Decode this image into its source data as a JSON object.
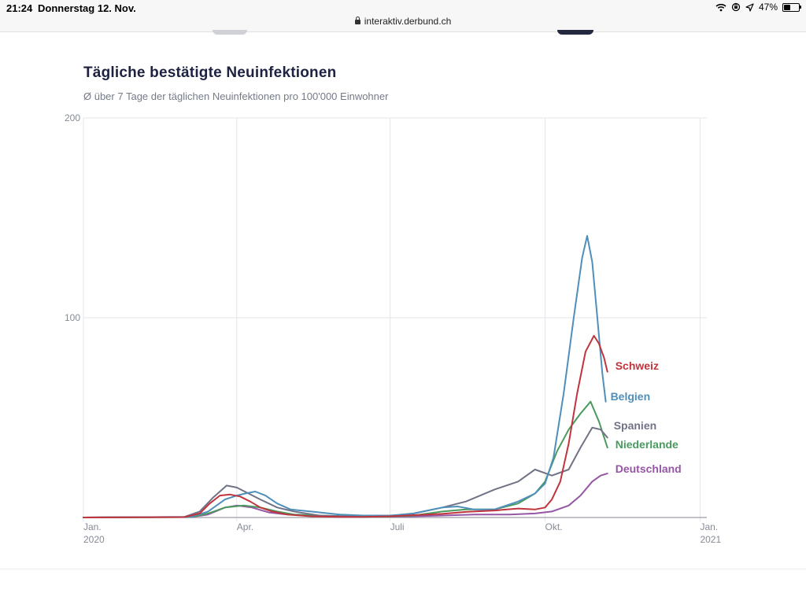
{
  "status_bar": {
    "time": "21:24",
    "date": "Donnerstag 12. Nov.",
    "url": "interaktiv.derbund.ch",
    "battery": "47%",
    "battery_level": 0.47,
    "icons": [
      "wifi-icon",
      "screen-lock-icon",
      "location-icon",
      "battery-icon"
    ]
  },
  "chart_data": {
    "type": "line",
    "title": "Tägliche bestätigte Neuinfektionen",
    "subtitle": "Ø über 7 Tage der täglichen Neuinfektionen pro 100'000 Einwohner",
    "y_ticks": [
      {
        "value": 200,
        "label": "200"
      },
      {
        "value": 100,
        "label": "100"
      }
    ],
    "ylim": [
      0,
      200
    ],
    "x_ticks": [
      {
        "date": "2020-01-01",
        "label": "Jan.",
        "sublabel": "2020"
      },
      {
        "date": "2020-04-01",
        "label": "Apr.",
        "sublabel": ""
      },
      {
        "date": "2020-07-01",
        "label": "Juli",
        "sublabel": ""
      },
      {
        "date": "2020-10-01",
        "label": "Okt.",
        "sublabel": ""
      },
      {
        "date": "2021-01-01",
        "label": "Jan.",
        "sublabel": "2021"
      }
    ],
    "xlim": [
      "2020-01-01",
      "2021-01-05"
    ],
    "grid": true,
    "series": [
      {
        "name": "Schweiz",
        "color": "#c0343d",
        "points": [
          [
            "2020-01-01",
            0
          ],
          [
            "2020-03-01",
            0.2
          ],
          [
            "2020-03-10",
            2
          ],
          [
            "2020-03-16",
            7
          ],
          [
            "2020-03-22",
            11
          ],
          [
            "2020-03-28",
            11.5
          ],
          [
            "2020-04-03",
            10.5
          ],
          [
            "2020-04-09",
            8
          ],
          [
            "2020-04-15",
            5
          ],
          [
            "2020-04-22",
            3
          ],
          [
            "2020-05-01",
            1.5
          ],
          [
            "2020-05-15",
            0.6
          ],
          [
            "2020-06-01",
            0.3
          ],
          [
            "2020-06-15",
            0.3
          ],
          [
            "2020-07-01",
            0.6
          ],
          [
            "2020-07-15",
            1.2
          ],
          [
            "2020-08-01",
            1.8
          ],
          [
            "2020-08-15",
            2.8
          ],
          [
            "2020-09-01",
            3.5
          ],
          [
            "2020-09-15",
            4.5
          ],
          [
            "2020-09-25",
            4
          ],
          [
            "2020-10-01",
            5
          ],
          [
            "2020-10-05",
            9
          ],
          [
            "2020-10-10",
            18
          ],
          [
            "2020-10-15",
            37
          ],
          [
            "2020-10-20",
            62
          ],
          [
            "2020-10-25",
            83
          ],
          [
            "2020-10-30",
            91
          ],
          [
            "2020-11-02",
            87
          ],
          [
            "2020-11-05",
            80
          ],
          [
            "2020-11-07",
            73
          ]
        ]
      },
      {
        "name": "Belgien",
        "color": "#4f8fba",
        "points": [
          [
            "2020-01-01",
            0
          ],
          [
            "2020-03-05",
            0.3
          ],
          [
            "2020-03-15",
            3
          ],
          [
            "2020-03-25",
            9
          ],
          [
            "2020-04-01",
            11
          ],
          [
            "2020-04-06",
            12
          ],
          [
            "2020-04-12",
            13
          ],
          [
            "2020-04-18",
            11
          ],
          [
            "2020-04-25",
            7
          ],
          [
            "2020-05-03",
            4
          ],
          [
            "2020-05-15",
            3
          ],
          [
            "2020-06-01",
            1.5
          ],
          [
            "2020-06-15",
            1
          ],
          [
            "2020-07-01",
            1
          ],
          [
            "2020-07-15",
            2
          ],
          [
            "2020-08-01",
            5
          ],
          [
            "2020-08-10",
            5.5
          ],
          [
            "2020-08-20",
            4
          ],
          [
            "2020-09-01",
            4
          ],
          [
            "2020-09-15",
            8
          ],
          [
            "2020-09-25",
            12
          ],
          [
            "2020-10-01",
            17
          ],
          [
            "2020-10-06",
            30
          ],
          [
            "2020-10-12",
            62
          ],
          [
            "2020-10-18",
            100
          ],
          [
            "2020-10-23",
            130
          ],
          [
            "2020-10-26",
            141
          ],
          [
            "2020-10-29",
            128
          ],
          [
            "2020-11-01",
            100
          ],
          [
            "2020-11-04",
            72
          ],
          [
            "2020-11-06",
            58
          ]
        ]
      },
      {
        "name": "Spanien",
        "color": "#707386",
        "points": [
          [
            "2020-01-01",
            0
          ],
          [
            "2020-03-01",
            0.3
          ],
          [
            "2020-03-10",
            3
          ],
          [
            "2020-03-18",
            10
          ],
          [
            "2020-03-26",
            16
          ],
          [
            "2020-04-01",
            15
          ],
          [
            "2020-04-08",
            12
          ],
          [
            "2020-04-15",
            9
          ],
          [
            "2020-04-25",
            5
          ],
          [
            "2020-05-05",
            3
          ],
          [
            "2020-05-20",
            1
          ],
          [
            "2020-06-15",
            0.5
          ],
          [
            "2020-07-01",
            0.7
          ],
          [
            "2020-07-15",
            2
          ],
          [
            "2020-08-01",
            5
          ],
          [
            "2020-08-15",
            8
          ],
          [
            "2020-09-01",
            14
          ],
          [
            "2020-09-15",
            18
          ],
          [
            "2020-09-25",
            24
          ],
          [
            "2020-10-05",
            21
          ],
          [
            "2020-10-15",
            24
          ],
          [
            "2020-10-22",
            35
          ],
          [
            "2020-10-29",
            45
          ],
          [
            "2020-11-03",
            44
          ],
          [
            "2020-11-07",
            40
          ]
        ]
      },
      {
        "name": "Niederlande",
        "color": "#4a9a5f",
        "points": [
          [
            "2020-01-01",
            0
          ],
          [
            "2020-03-05",
            0.2
          ],
          [
            "2020-03-15",
            2
          ],
          [
            "2020-03-25",
            5
          ],
          [
            "2020-04-05",
            6
          ],
          [
            "2020-04-15",
            5
          ],
          [
            "2020-04-25",
            3
          ],
          [
            "2020-05-05",
            1.5
          ],
          [
            "2020-06-01",
            0.5
          ],
          [
            "2020-06-15",
            0.3
          ],
          [
            "2020-07-01",
            0.5
          ],
          [
            "2020-07-15",
            1
          ],
          [
            "2020-08-01",
            3
          ],
          [
            "2020-08-15",
            4
          ],
          [
            "2020-09-01",
            4
          ],
          [
            "2020-09-15",
            7
          ],
          [
            "2020-09-25",
            12
          ],
          [
            "2020-10-01",
            18
          ],
          [
            "2020-10-08",
            33
          ],
          [
            "2020-10-15",
            44
          ],
          [
            "2020-10-22",
            52
          ],
          [
            "2020-10-28",
            58
          ],
          [
            "2020-11-02",
            48
          ],
          [
            "2020-11-07",
            35
          ]
        ]
      },
      {
        "name": "Deutschland",
        "color": "#9556a4",
        "points": [
          [
            "2020-01-01",
            0
          ],
          [
            "2020-03-05",
            0.2
          ],
          [
            "2020-03-15",
            1.5
          ],
          [
            "2020-03-25",
            5
          ],
          [
            "2020-04-01",
            6
          ],
          [
            "2020-04-10",
            5
          ],
          [
            "2020-04-20",
            2.5
          ],
          [
            "2020-05-01",
            1.5
          ],
          [
            "2020-06-01",
            0.5
          ],
          [
            "2020-07-01",
            0.4
          ],
          [
            "2020-07-15",
            0.6
          ],
          [
            "2020-08-01",
            1
          ],
          [
            "2020-08-20",
            1.5
          ],
          [
            "2020-09-10",
            1.5
          ],
          [
            "2020-09-25",
            2
          ],
          [
            "2020-10-05",
            3
          ],
          [
            "2020-10-15",
            6
          ],
          [
            "2020-10-22",
            11
          ],
          [
            "2020-10-29",
            18
          ],
          [
            "2020-11-03",
            21
          ],
          [
            "2020-11-07",
            22
          ]
        ]
      }
    ]
  }
}
